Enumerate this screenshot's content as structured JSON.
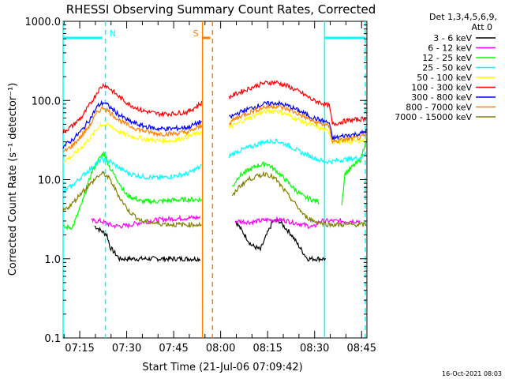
{
  "chart_data": {
    "type": "line",
    "title": "RHESSI Observing Summary Count Rates, Corrected",
    "xlabel": "Start Time (21-Jul-06 07:09:42)",
    "ylabel": "Corrected Count Rate (s⁻¹ detector⁻¹)",
    "y_scale": "log",
    "ylim": [
      0.1,
      1000
    ],
    "xlim_minutes": [
      0,
      97
    ],
    "x_ticks": [
      {
        "t": 5.3,
        "label": "07:15"
      },
      {
        "t": 20.3,
        "label": "07:30"
      },
      {
        "t": 35.3,
        "label": "07:45"
      },
      {
        "t": 50.3,
        "label": "08:00"
      },
      {
        "t": 65.3,
        "label": "08:15"
      },
      {
        "t": 80.3,
        "label": "08:30"
      },
      {
        "t": 95.3,
        "label": "08:45"
      }
    ],
    "y_ticks": [
      {
        "v": 1000,
        "label": "1000.0"
      },
      {
        "v": 100,
        "label": "100.0"
      },
      {
        "v": 10,
        "label": "10.0"
      },
      {
        "v": 1,
        "label": "1.0"
      },
      {
        "v": 0.1,
        "label": "0.1"
      }
    ],
    "legend": {
      "placement": "right",
      "header": [
        "Det 1,3,4,5,6,9,",
        "Att 0"
      ]
    },
    "series": [
      {
        "name": "3 - 6 keV",
        "color": "#000000",
        "x": [
          10,
          14,
          15,
          18,
          20,
          23,
          25,
          28,
          30,
          33,
          36,
          44,
          44.5,
          45,
          55,
          58,
          60,
          63,
          65,
          67,
          69,
          73,
          75,
          78,
          80,
          82,
          84,
          85,
          90,
          94,
          96
        ],
        "y": [
          2.6,
          2.0,
          1.4,
          1.0,
          1.0,
          1.0,
          1.0,
          1.0,
          1.0,
          1.0,
          1.0,
          1.0,
          null,
          null,
          3.0,
          2.0,
          1.5,
          1.3,
          2.0,
          3.0,
          3.0,
          2.0,
          1.5,
          1.0,
          1.0,
          1.0,
          1.0,
          null,
          null,
          null,
          null
        ]
      },
      {
        "name": "6 - 12 keV",
        "color": "#ff00ff",
        "x": [
          9,
          12,
          16,
          20,
          25,
          30,
          35,
          40,
          44,
          45,
          52,
          55,
          60,
          65,
          70,
          75,
          80,
          82,
          85,
          90,
          95
        ],
        "y": [
          3.0,
          3.0,
          2.6,
          2.6,
          2.9,
          3.1,
          3.2,
          3.3,
          3.3,
          null,
          null,
          3.0,
          2.9,
          3.1,
          3.1,
          2.8,
          2.5,
          3.0,
          3.0,
          3.0,
          3.0
        ]
      },
      {
        "name": "12 - 25 keV",
        "color": "#00ff00",
        "x": [
          0,
          3,
          6,
          9,
          11,
          13,
          15,
          18,
          20,
          25,
          30,
          35,
          40,
          44.5,
          45,
          52,
          54,
          56,
          59,
          62,
          65,
          68,
          71,
          74,
          77,
          80,
          82,
          85,
          88,
          89,
          90,
          95,
          97
        ],
        "y": [
          2.5,
          2.5,
          5.0,
          12,
          17,
          22,
          14,
          9,
          6.5,
          5.3,
          5.3,
          5.5,
          5.6,
          5.6,
          null,
          null,
          8,
          11,
          13,
          15,
          16,
          13,
          10,
          7.5,
          6.0,
          5.5,
          5.2,
          null,
          null,
          5,
          12,
          18,
          35
        ]
      },
      {
        "name": "25 - 50 keV",
        "color": "#00ffff",
        "x": [
          0,
          3,
          6,
          9,
          12,
          15,
          18,
          21,
          25,
          30,
          35,
          40,
          44.5,
          45,
          52,
          53,
          56,
          60,
          64,
          68,
          72,
          76,
          80,
          83,
          86,
          90,
          95,
          97
        ],
        "y": [
          7,
          8.5,
          11,
          14,
          18,
          17,
          14,
          12,
          11,
          10.5,
          11,
          12,
          15,
          null,
          null,
          20,
          23,
          26,
          30,
          31,
          27,
          22,
          19,
          17,
          17,
          18,
          19,
          21
        ]
      },
      {
        "name": "50 - 100 keV",
        "color": "#ffff00",
        "x": [
          0,
          3,
          6,
          9,
          12,
          15,
          18,
          21,
          25,
          30,
          35,
          40,
          44.5,
          45,
          52,
          53,
          56,
          60,
          64,
          68,
          72,
          76,
          80,
          83,
          85,
          86,
          90,
          95,
          97
        ],
        "y": [
          17,
          20,
          26,
          35,
          50,
          48,
          40,
          36,
          33,
          31,
          31,
          35,
          40,
          null,
          null,
          45,
          52,
          62,
          72,
          75,
          65,
          55,
          48,
          43,
          40,
          30,
          30,
          31,
          32
        ]
      },
      {
        "name": "100 - 300 keV",
        "color": "#ff0000",
        "x": [
          0,
          3,
          6,
          9,
          11,
          13,
          15,
          18,
          21,
          25,
          30,
          35,
          40,
          44.5,
          45,
          52,
          53,
          56,
          60,
          64,
          68,
          72,
          76,
          80,
          83,
          85,
          86,
          90,
          95,
          97
        ],
        "y": [
          40,
          48,
          62,
          95,
          130,
          160,
          140,
          110,
          90,
          75,
          68,
          68,
          72,
          95,
          null,
          null,
          110,
          125,
          145,
          165,
          170,
          150,
          125,
          100,
          92,
          85,
          50,
          55,
          58,
          60
        ]
      },
      {
        "name": "300 - 800 keV",
        "color": "#0000ff",
        "x": [
          0,
          3,
          6,
          9,
          11,
          13,
          15,
          18,
          21,
          25,
          30,
          35,
          40,
          44.5,
          45,
          52,
          53,
          56,
          60,
          64,
          68,
          72,
          76,
          80,
          83,
          85,
          86,
          90,
          95,
          97
        ],
        "y": [
          26,
          32,
          42,
          62,
          85,
          95,
          82,
          65,
          55,
          48,
          44,
          44,
          46,
          55,
          null,
          null,
          60,
          70,
          80,
          90,
          93,
          85,
          72,
          60,
          55,
          52,
          33,
          36,
          38,
          42
        ]
      },
      {
        "name": "800 - 7000 keV",
        "color": "#ff8000",
        "x": [
          0,
          3,
          6,
          9,
          11,
          13,
          15,
          18,
          21,
          25,
          30,
          35,
          40,
          44.5,
          45,
          52,
          53,
          56,
          60,
          64,
          68,
          72,
          76,
          80,
          83,
          85,
          86,
          90,
          95,
          97
        ],
        "y": [
          22,
          27,
          36,
          52,
          72,
          82,
          70,
          56,
          48,
          42,
          38,
          38,
          40,
          48,
          null,
          null,
          52,
          62,
          72,
          82,
          85,
          77,
          65,
          54,
          50,
          47,
          30,
          32,
          34,
          36
        ]
      },
      {
        "name": "7000 - 15000 keV",
        "color": "#808000",
        "x": [
          0,
          3,
          6,
          9,
          11,
          13,
          15,
          18,
          21,
          25,
          30,
          35,
          40,
          44.5,
          45,
          52,
          54,
          56,
          59,
          62,
          65,
          68,
          71,
          74,
          77,
          80,
          83,
          85,
          88,
          90,
          95,
          97
        ],
        "y": [
          4,
          5,
          7,
          9,
          11,
          12,
          10,
          6,
          4,
          3,
          2.8,
          2.7,
          2.7,
          2.7,
          null,
          null,
          6,
          8,
          10,
          11,
          12,
          10,
          7,
          5,
          3.5,
          3,
          2.8,
          2.7,
          2.7,
          2.7,
          2.7,
          2.7
        ]
      }
    ],
    "annotations": [
      {
        "label": "N",
        "t": 13.5,
        "color": "#00ffff",
        "style": "dashed",
        "bar_start": 0,
        "bar_end": 12.5
      },
      {
        "label": "S",
        "t": 47.7,
        "color": "#ff8000",
        "style": "dashed",
        "bar_start": 44.5,
        "bar_end": 47,
        "solid_line_t": 44.5
      },
      {
        "label": "",
        "t": 83.5,
        "color": "#00ffff",
        "style": "solid",
        "bar_start": 83.5,
        "bar_end": 96.5
      },
      {
        "label": "",
        "t": 96.5,
        "color": "#00ffff",
        "style": "dashed"
      },
      {
        "label": "",
        "t": 0,
        "color": "#00ffff",
        "style": "solid"
      }
    ],
    "footer": "16-Oct-2021 08:03"
  }
}
